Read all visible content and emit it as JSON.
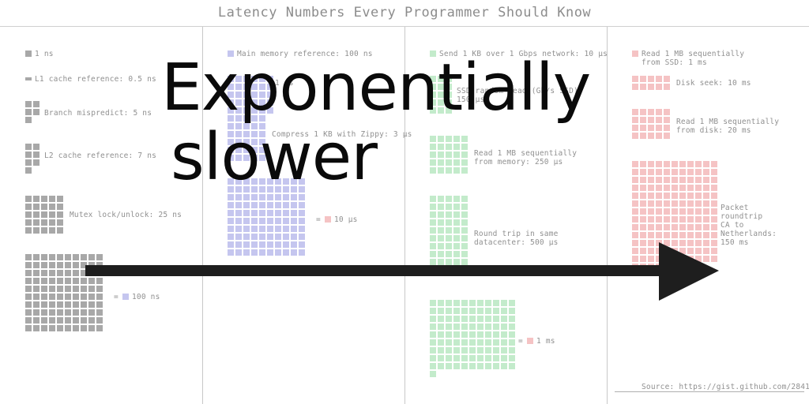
{
  "title": "Latency Numbers Every Programmer Should Know",
  "overlay": {
    "line1": "Exponentially",
    "line2": "slower"
  },
  "source": "Source: https://gist.github.com/2841832",
  "colors": {
    "gray": "#a8a8a8",
    "blue": "#c5c6ef",
    "green": "#c3ebcb",
    "pink": "#f5c3c4",
    "arrow": "#1e1e1e"
  },
  "columns": [
    {
      "color": "gray",
      "items": [
        {
          "label": "1 ns"
        },
        {
          "label": "L1 cache reference: 0.5 ns"
        },
        {
          "label": "Branch mispredict: 5 ns"
        },
        {
          "label": "L2 cache reference: 7 ns"
        },
        {
          "label": "Mutex lock/unlock: 25 ns"
        },
        {
          "label": "= ",
          "suffix": "100 ns"
        }
      ]
    },
    {
      "color": "blue",
      "items": [
        {
          "label": "Main memory reference: 100 ns"
        },
        {
          "label": "1 µs"
        },
        {
          "label": "Compress 1 KB with Zippy: 3 µs"
        },
        {
          "label": "= ",
          "suffix": "10 µs"
        }
      ]
    },
    {
      "color": "green",
      "items": [
        {
          "label": "Send 1 KB over 1 Gbps network: 10 µs"
        },
        {
          "label": "SSD random read (Gb/s SSD):\n150 µs"
        },
        {
          "label": "Read 1 MB sequentially\nfrom memory: 250 µs"
        },
        {
          "label": "Round trip in same\ndatacenter: 500 µs"
        },
        {
          "label": "= ",
          "suffix": "1 ms"
        }
      ]
    },
    {
      "color": "pink",
      "items": [
        {
          "label": "Read 1 MB sequentially\nfrom SSD: 1 ms"
        },
        {
          "label": "Disk seek: 10 ms"
        },
        {
          "label": "Read 1 MB sequentially\nfrom disk: 20 ms"
        },
        {
          "label": "Packet\nroundtrip\nCA to\nNetherlands:\n150 ms"
        }
      ]
    }
  ]
}
